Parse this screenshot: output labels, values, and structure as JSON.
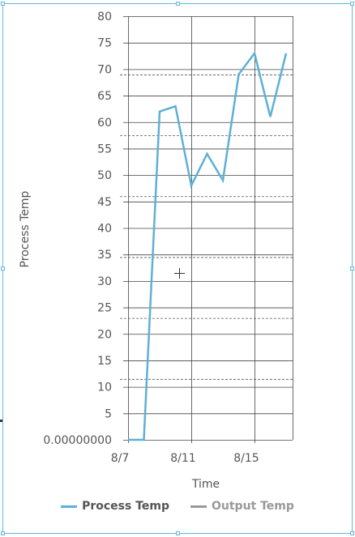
{
  "chart_data": {
    "type": "line",
    "xlabel": "Time",
    "ylabel": "Process Temp",
    "ylim": [
      0,
      80
    ],
    "yticks": [
      0,
      5,
      10,
      15,
      20,
      25,
      30,
      35,
      40,
      45,
      50,
      55,
      60,
      65,
      70,
      75,
      80
    ],
    "ytick_labels": [
      "0.00000000",
      "5",
      "10",
      "15",
      "20",
      "25",
      "30",
      "35",
      "40",
      "45",
      "50",
      "55",
      "60",
      "65",
      "70",
      "75",
      "80"
    ],
    "xlim": [
      "8/7",
      "8/18"
    ],
    "xticks": [
      "8/7",
      "8/11",
      "8/15"
    ],
    "grid": true,
    "legend_position": "bottom",
    "series": [
      {
        "name": "Process Temp",
        "color": "#5eb0d6",
        "x": [
          "8/7",
          "8/8",
          "8/9",
          "8/10",
          "8/11",
          "8/12",
          "8/13",
          "8/14",
          "8/15",
          "8/16",
          "8/17"
        ],
        "values": [
          0,
          0,
          62,
          63,
          48,
          54,
          49,
          69,
          73,
          61,
          73
        ]
      },
      {
        "name": "Output Temp",
        "color": "#999999",
        "x": [],
        "values": []
      }
    ],
    "reference_lines": [
      11.5,
      23,
      34.5,
      46,
      57.5,
      69
    ]
  }
}
